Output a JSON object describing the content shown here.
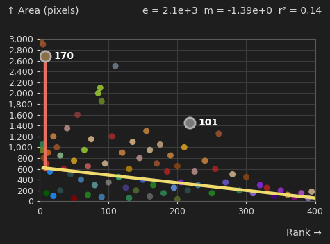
{
  "chart_data": {
    "type": "scatter",
    "y_label": "↑ Area (pixels)",
    "subtitle": "e = 2.1e+3  m = -1.39e+0  r² = 0.14",
    "x_label": "Rank →",
    "xlim": [
      0,
      400
    ],
    "xticks": [
      0,
      100,
      200,
      300,
      400
    ],
    "ylim": [
      0,
      3000
    ],
    "yticks": [
      0,
      200,
      400,
      600,
      800,
      {
        "value": 1000,
        "label": "1,000"
      },
      {
        "value": 1200,
        "label": "1,200"
      },
      {
        "value": 1400,
        "label": "1,400"
      },
      {
        "value": 1600,
        "label": "1,600"
      },
      {
        "value": 1800,
        "label": "1,800"
      },
      {
        "value": 2000,
        "label": "2,000"
      },
      {
        "value": 2200,
        "label": "2,200"
      },
      {
        "value": 2400,
        "label": "2,400"
      },
      {
        "value": 2600,
        "label": "2,600"
      },
      {
        "value": 2800,
        "label": "2,800"
      },
      {
        "value": 3000,
        "label": "3,000"
      }
    ],
    "grid": true,
    "series": [
      {
        "type": "scatter",
        "marker": "circle",
        "x": [
          2,
          5,
          4,
          3,
          6,
          10,
          12,
          15,
          20,
          25,
          30,
          35,
          40,
          45,
          50,
          55,
          60,
          65,
          70,
          75,
          80,
          85,
          88,
          90,
          95,
          100,
          105,
          110,
          115,
          120,
          125,
          130,
          135,
          140,
          145,
          150,
          155,
          160,
          165,
          170,
          175,
          180,
          185,
          190,
          195,
          200,
          205,
          210,
          215,
          225,
          230,
          240,
          250,
          255,
          260,
          270,
          280,
          290,
          300,
          310,
          320,
          330,
          340,
          350,
          360,
          370,
          380,
          390,
          395,
          10,
          20,
          30,
          50,
          70,
          90,
          130,
          160,
          200
        ],
        "values": [
          2950,
          2900,
          1050,
          950,
          800,
          700,
          900,
          550,
          1200,
          1000,
          850,
          600,
          1350,
          500,
          750,
          1600,
          400,
          950,
          650,
          1150,
          300,
          2000,
          2100,
          1850,
          700,
          350,
          1200,
          2500,
          450,
          900,
          250,
          600,
          1100,
          200,
          800,
          400,
          1300,
          950,
          300,
          700,
          1050,
          150,
          550,
          850,
          250,
          650,
          350,
          1000,
          200,
          550,
          300,
          750,
          150,
          600,
          1250,
          350,
          500,
          200,
          450,
          150,
          300,
          250,
          100,
          200,
          120,
          80,
          150,
          60,
          180,
          150,
          100,
          200,
          50,
          120,
          80,
          60,
          90,
          40
        ],
        "colors": [
          "#8b5a2b",
          "#a0522d",
          "#2e8b57",
          "#6b8e23",
          "#8b4513",
          "#c0392b",
          "#d2691e",
          "#1e90ff",
          "#cd853f",
          "#a0522d",
          "#8fbc8f",
          "#b22222",
          "#bc8f8f",
          "#2f4f4f",
          "#daa520",
          "#8b3a3a",
          "#4682b4",
          "#9acd32",
          "#cd5c5c",
          "#deb887",
          "#5f9ea0",
          "#9acd32",
          "#9acd32",
          "#6b8e23",
          "#d2b48c",
          "#808080",
          "#a52a2a",
          "#708090",
          "#3cb371",
          "#cd853f",
          "#483d8b",
          "#b8860b",
          "#deb887",
          "#556b2f",
          "#bc8f8f",
          "#4169e1",
          "#cd853f",
          "#d2b48c",
          "#228b22",
          "#a0522d",
          "#c4a484",
          "#2e8b57",
          "#b22222",
          "#cd853f",
          "#6495ed",
          "#8b4513",
          "#8a2be2",
          "#daa520",
          "#2f4f4f",
          "#bc8f8f",
          "#4682b4",
          "#cd853f",
          "#228b22",
          "#b22222",
          "#a0522d",
          "#6a5acd",
          "#d2b48c",
          "#2e8b57",
          "#8b4513",
          "#9370db",
          "#8a2be2",
          "#b22222",
          "#4b0082",
          "#9932cc",
          "#cd853f",
          "#8b008b",
          "#ba55d3",
          "#9370db",
          "#d2b48c",
          "#006400",
          "#1e90ff",
          "#2f4f4f",
          "#8b0000",
          "#228b22",
          "#4682b4",
          "#2e8b57",
          "#696969",
          "#556b2f"
        ]
      },
      {
        "type": "line",
        "color": "#e8705f",
        "x": [
          8,
          8
        ],
        "values": [
          600,
          2680
        ]
      },
      {
        "type": "line",
        "color": "#f0dc6e",
        "x": [
          5,
          400
        ],
        "values": [
          620,
          60
        ]
      }
    ],
    "annotations": [
      {
        "text": "170",
        "x": 8,
        "y": 2680,
        "color": "#8b6f47"
      },
      {
        "text": "101",
        "x": 218,
        "y": 1450,
        "color": "#7a7a7a"
      }
    ]
  }
}
